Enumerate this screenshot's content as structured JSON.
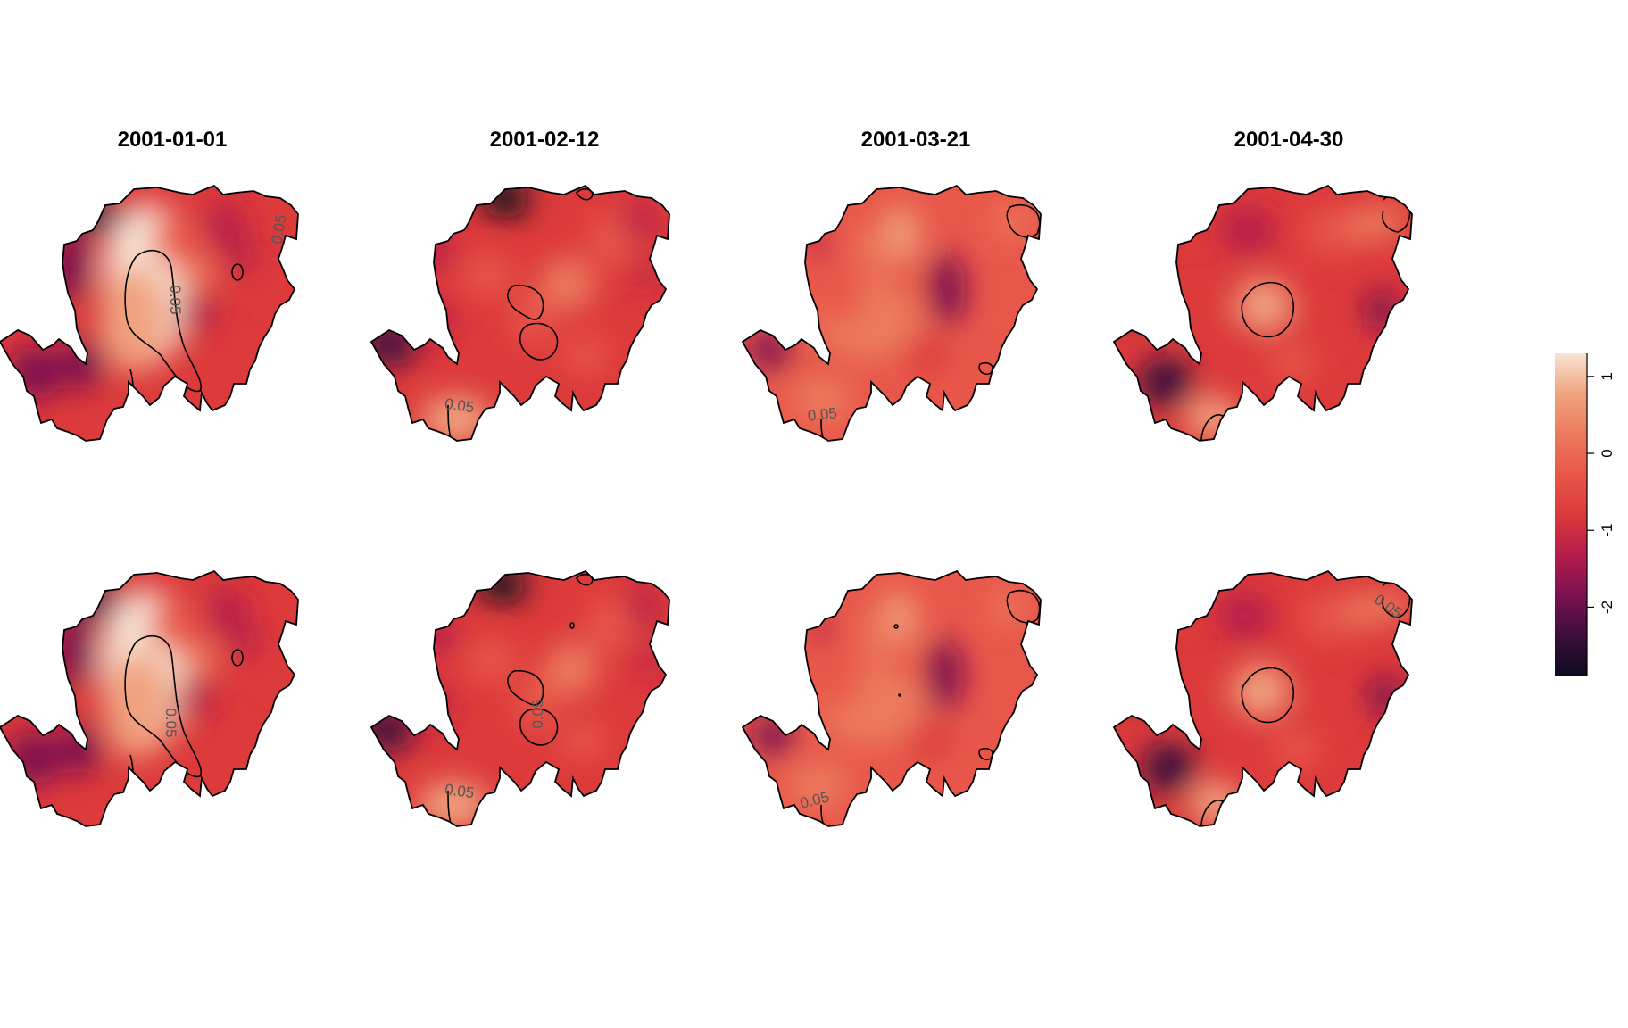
{
  "figure": {
    "dates": [
      "2001-01-01",
      "2001-02-12",
      "2001-03-21",
      "2001-04-30"
    ],
    "rows": 2,
    "contour_level": "0.05"
  },
  "legend": {
    "ticks": [
      "1",
      "0",
      "-1",
      "-2"
    ],
    "tick_values": [
      1,
      0,
      -1,
      -2
    ],
    "min": -2.9,
    "max": 1.3,
    "colors": [
      "#0e0a1f",
      "#3b0f3c",
      "#7a1150",
      "#b51c4c",
      "#dc3a3b",
      "#e8574a",
      "#ec7a5d",
      "#f0a37f",
      "#f7e3d3"
    ]
  },
  "panels": [
    {
      "row": 1,
      "date": "2001-01-01",
      "contour_labels": [
        "0.05",
        "0.05"
      ]
    },
    {
      "row": 1,
      "date": "2001-02-12",
      "contour_labels": [
        "0.05"
      ]
    },
    {
      "row": 1,
      "date": "2001-03-21",
      "contour_labels": [
        "0.05"
      ]
    },
    {
      "row": 1,
      "date": "2001-04-30",
      "contour_labels": []
    },
    {
      "row": 2,
      "date": "2001-01-01",
      "contour_labels": [
        "0.05"
      ]
    },
    {
      "row": 2,
      "date": "2001-02-12",
      "contour_labels": [
        "0.05",
        "0.05"
      ]
    },
    {
      "row": 2,
      "date": "2001-03-21",
      "contour_labels": [
        "0.05"
      ]
    },
    {
      "row": 2,
      "date": "2001-04-30",
      "contour_labels": [
        "0.05"
      ]
    }
  ]
}
